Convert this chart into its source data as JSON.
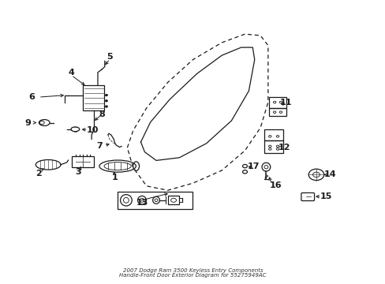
{
  "title_line1": "2007 Dodge Ram 3500 Keyless Entry Components",
  "title_line2": "Handle-Front Door Exterior Diagram for 55275949AC",
  "bg_color": "#ffffff",
  "line_color": "#1a1a1a",
  "fig_width": 4.89,
  "fig_height": 3.6,
  "dpi": 100,
  "door_outer": {
    "x": [
      0.39,
      0.41,
      0.46,
      0.56,
      0.66,
      0.72,
      0.755,
      0.76,
      0.755,
      0.72,
      0.68,
      0.62,
      0.56,
      0.48,
      0.4,
      0.385,
      0.39
    ],
    "y": [
      0.6,
      0.68,
      0.76,
      0.85,
      0.9,
      0.91,
      0.88,
      0.78,
      0.6,
      0.48,
      0.4,
      0.35,
      0.3,
      0.27,
      0.28,
      0.4,
      0.6
    ]
  },
  "door_inner": {
    "x": [
      0.415,
      0.44,
      0.52,
      0.6,
      0.655,
      0.675,
      0.67,
      0.645,
      0.58,
      0.5,
      0.43,
      0.415
    ],
    "y": [
      0.58,
      0.64,
      0.74,
      0.8,
      0.8,
      0.73,
      0.57,
      0.45,
      0.37,
      0.33,
      0.35,
      0.58
    ]
  }
}
